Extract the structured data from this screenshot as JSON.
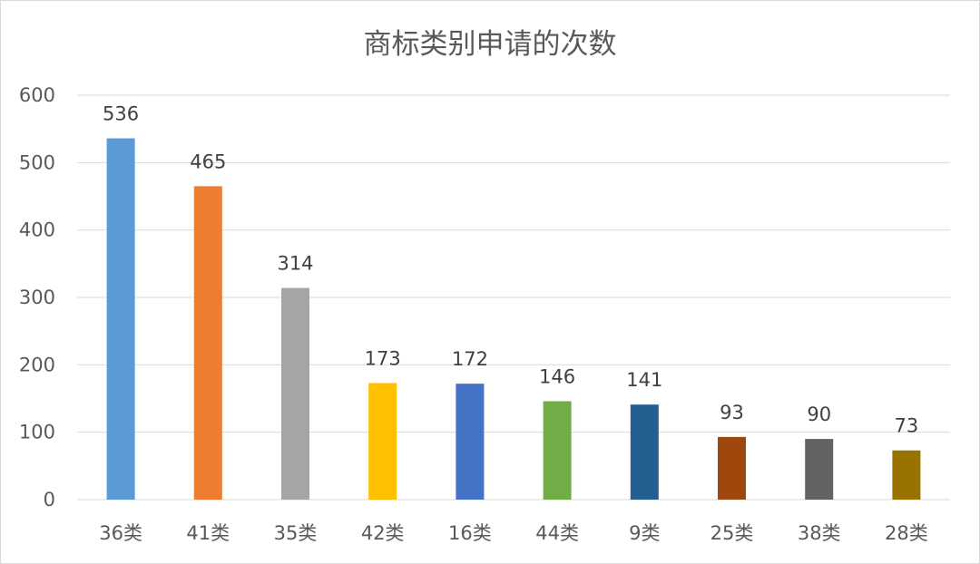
{
  "chart_data": {
    "type": "bar",
    "title": "商标类别申请的次数",
    "categories": [
      "36类",
      "41类",
      "35类",
      "42类",
      "16类",
      "44类",
      "9类",
      "25类",
      "38类",
      "28类"
    ],
    "values": [
      536,
      465,
      314,
      173,
      172,
      146,
      141,
      93,
      90,
      73
    ],
    "colors": [
      "#5B9BD5",
      "#ED7D31",
      "#A5A5A5",
      "#FFC000",
      "#4472C4",
      "#70AD47",
      "#255E91",
      "#9E480E",
      "#636363",
      "#997300"
    ],
    "ylim": [
      0,
      600
    ],
    "yticks": [
      0,
      100,
      200,
      300,
      400,
      500,
      600
    ],
    "grid": true,
    "data_labels": true
  }
}
